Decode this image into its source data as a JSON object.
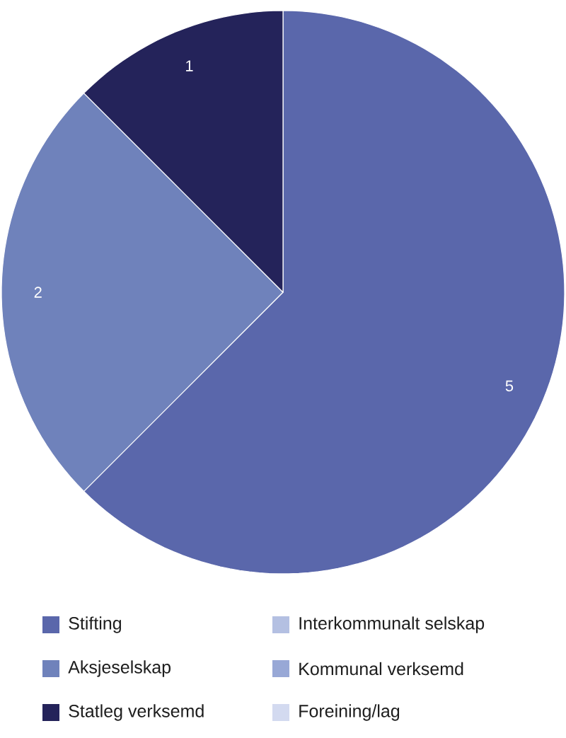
{
  "chart_data": {
    "type": "pie",
    "categories": [
      "Stifting",
      "Aksjeselskap",
      "Statleg verksemd",
      "Interkommunalt selskap",
      "Kommunal verksemd",
      "Foreining/lag"
    ],
    "values": [
      5,
      2,
      1,
      0,
      0,
      0
    ],
    "colors": [
      "#5a67ab",
      "#6f82bb",
      "#24235a",
      "#b4c0e2",
      "#98a8d6",
      "#d3daf0"
    ],
    "data_labels": true,
    "legend": "bottom"
  }
}
